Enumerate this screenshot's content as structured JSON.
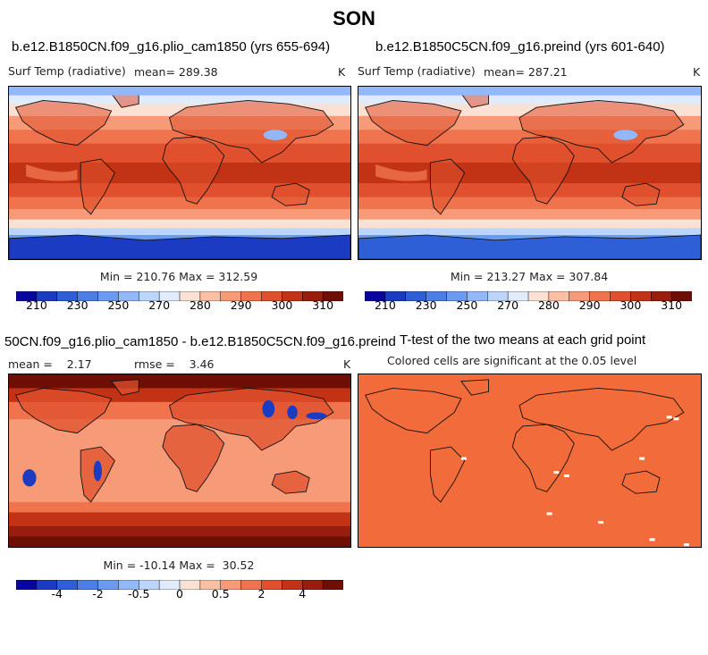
{
  "figure_title": "SON",
  "chart_data": [
    {
      "type": "heatmap",
      "title": "b.e12.B1850CN.f09_g16.plio_cam1850 (yrs 655-694)",
      "variable": "Surf Temp (radiative)",
      "units": "K",
      "mean_text": "mean= 289.38",
      "minmax_text": "Min = 210.76 Max = 312.59",
      "min": 210.76,
      "max": 312.59,
      "colorbar_levels": [
        210,
        220,
        230,
        240,
        250,
        260,
        270,
        275,
        280,
        285,
        290,
        295,
        300,
        305,
        310
      ],
      "colorbar_tick_labels": [
        "210",
        "230",
        "250",
        "270",
        "280",
        "290",
        "300",
        "310"
      ]
    },
    {
      "type": "heatmap",
      "title": "b.e12.B1850C5CN.f09_g16.preind (yrs 601-640)",
      "variable": "Surf Temp (radiative)",
      "units": "K",
      "mean_text": "mean= 287.21",
      "minmax_text": "Min = 213.27 Max = 307.84",
      "min": 213.27,
      "max": 307.84,
      "colorbar_levels": [
        210,
        220,
        230,
        240,
        250,
        260,
        270,
        275,
        280,
        285,
        290,
        295,
        300,
        305,
        310
      ],
      "colorbar_tick_labels": [
        "210",
        "230",
        "250",
        "270",
        "280",
        "290",
        "300",
        "310"
      ]
    },
    {
      "type": "heatmap",
      "title": "50CN.f09_g16.plio_cam1850 - b.e12.B1850C5CN.f09_g16.preind",
      "mean_text": "mean =    2.17",
      "rmse_text": "rmse =    3.46",
      "units": "K",
      "minmax_text": "Min = -10.14 Max =  30.52",
      "min": -10.14,
      "max": 30.52,
      "colorbar_levels": [
        -5,
        -4,
        -3,
        -2,
        -1,
        -0.5,
        -0.25,
        0,
        0.25,
        0.5,
        1,
        2,
        3,
        4,
        5
      ],
      "colorbar_tick_labels": [
        "-4",
        "-2",
        "-0.5",
        "0",
        "0.5",
        "2",
        "4"
      ]
    },
    {
      "type": "heatmap",
      "title": "T-test of the two means at each grid point",
      "subtitle": "Colored cells are significant at the 0.05 level"
    }
  ],
  "colors": {
    "cold_scale": [
      "#08069e",
      "#1b3cc2",
      "#2f5fd6",
      "#4c7fe6",
      "#6b9bf0",
      "#92b8f7",
      "#bcd5fb",
      "#e0ebfc",
      "#fbe1d3",
      "#fbbfa4",
      "#f79a77",
      "#ef744e",
      "#e0502e",
      "#c23315",
      "#981d0c",
      "#6d0f05"
    ],
    "ttest_fill": "#f26b3a"
  }
}
